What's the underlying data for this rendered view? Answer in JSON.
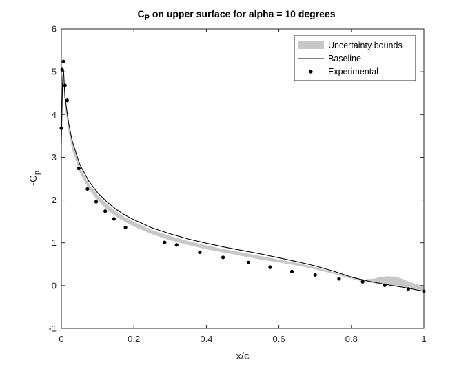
{
  "chart_data": {
    "type": "line",
    "title_main": "C",
    "title_sub": "P",
    "title_rest": " on upper surface for alpha = 10 degrees",
    "xlabel": "x/c",
    "ylabel_main": "-C",
    "ylabel_sub": "p",
    "xlim": [
      0,
      1
    ],
    "ylim": [
      -1,
      6
    ],
    "xticks": [
      0,
      0.2,
      0.4,
      0.6,
      0.8,
      1
    ],
    "xtick_labels": [
      "0",
      "0.2",
      "0.4",
      "0.6",
      "0.8",
      "1"
    ],
    "yticks": [
      -1,
      0,
      1,
      2,
      3,
      4,
      5,
      6
    ],
    "ytick_labels": [
      "-1",
      "0",
      "1",
      "2",
      "3",
      "4",
      "5",
      "6"
    ],
    "grid": false,
    "legend_position": "top-right",
    "legend": [
      {
        "label": "Uncertainty bounds",
        "kind": "patch",
        "color": "#c8c8c8"
      },
      {
        "label": "Baseline",
        "kind": "line",
        "color": "#000000"
      },
      {
        "label": "Experimental",
        "kind": "marker",
        "color": "#000000"
      }
    ],
    "series": [
      {
        "name": "Uncertainty bounds",
        "kind": "band",
        "color": "#c8c8c8",
        "x": [
          0,
          0.005,
          0.01,
          0.02,
          0.03,
          0.05,
          0.075,
          0.1,
          0.125,
          0.15,
          0.175,
          0.2,
          0.25,
          0.3,
          0.35,
          0.4,
          0.45,
          0.5,
          0.55,
          0.6,
          0.65,
          0.7,
          0.75,
          0.8,
          0.83,
          0.86,
          0.88,
          0.9,
          0.92,
          0.94,
          0.96,
          0.98,
          1.0
        ],
        "upper": [
          4.85,
          5.0,
          4.35,
          3.75,
          3.33,
          2.8,
          2.4,
          2.12,
          1.91,
          1.74,
          1.6,
          1.49,
          1.3,
          1.16,
          1.04,
          0.94,
          0.85,
          0.77,
          0.69,
          0.61,
          0.53,
          0.43,
          0.32,
          0.19,
          0.14,
          0.16,
          0.2,
          0.22,
          0.21,
          0.16,
          0.09,
          0.03,
          -0.01
        ],
        "lower": [
          4.7,
          4.9,
          4.2,
          3.6,
          3.18,
          2.66,
          2.26,
          1.99,
          1.78,
          1.62,
          1.49,
          1.38,
          1.2,
          1.06,
          0.95,
          0.85,
          0.77,
          0.69,
          0.61,
          0.54,
          0.47,
          0.38,
          0.28,
          0.16,
          0.1,
          0.06,
          0.04,
          0.02,
          0.0,
          -0.02,
          -0.05,
          -0.08,
          -0.11
        ]
      },
      {
        "name": "Baseline",
        "kind": "line",
        "color": "#000000",
        "x": [
          0,
          0.003,
          0.006,
          0.01,
          0.02,
          0.03,
          0.05,
          0.075,
          0.1,
          0.125,
          0.15,
          0.175,
          0.2,
          0.25,
          0.3,
          0.35,
          0.4,
          0.45,
          0.5,
          0.55,
          0.6,
          0.65,
          0.7,
          0.75,
          0.8,
          0.85,
          0.9,
          0.95,
          1.0
        ],
        "y": [
          3.3,
          4.7,
          5.05,
          4.4,
          3.8,
          3.38,
          2.85,
          2.45,
          2.17,
          1.96,
          1.79,
          1.65,
          1.54,
          1.35,
          1.21,
          1.09,
          0.99,
          0.9,
          0.82,
          0.74,
          0.65,
          0.56,
          0.46,
          0.34,
          0.2,
          0.1,
          0.02,
          -0.05,
          -0.13
        ]
      },
      {
        "name": "Experimental",
        "kind": "scatter",
        "color": "#000000",
        "x": [
          0.0,
          0.002,
          0.006,
          0.01,
          0.016,
          0.048,
          0.072,
          0.096,
          0.121,
          0.145,
          0.177,
          0.285,
          0.318,
          0.382,
          0.446,
          0.516,
          0.576,
          0.636,
          0.7,
          0.766,
          0.831,
          0.892,
          0.957,
          1.0
        ],
        "y": [
          3.68,
          5.05,
          5.24,
          4.68,
          4.33,
          2.74,
          2.26,
          1.96,
          1.74,
          1.56,
          1.36,
          1.01,
          0.95,
          0.78,
          0.66,
          0.54,
          0.43,
          0.33,
          0.25,
          0.16,
          0.09,
          0.01,
          -0.08,
          -0.13
        ]
      }
    ]
  }
}
